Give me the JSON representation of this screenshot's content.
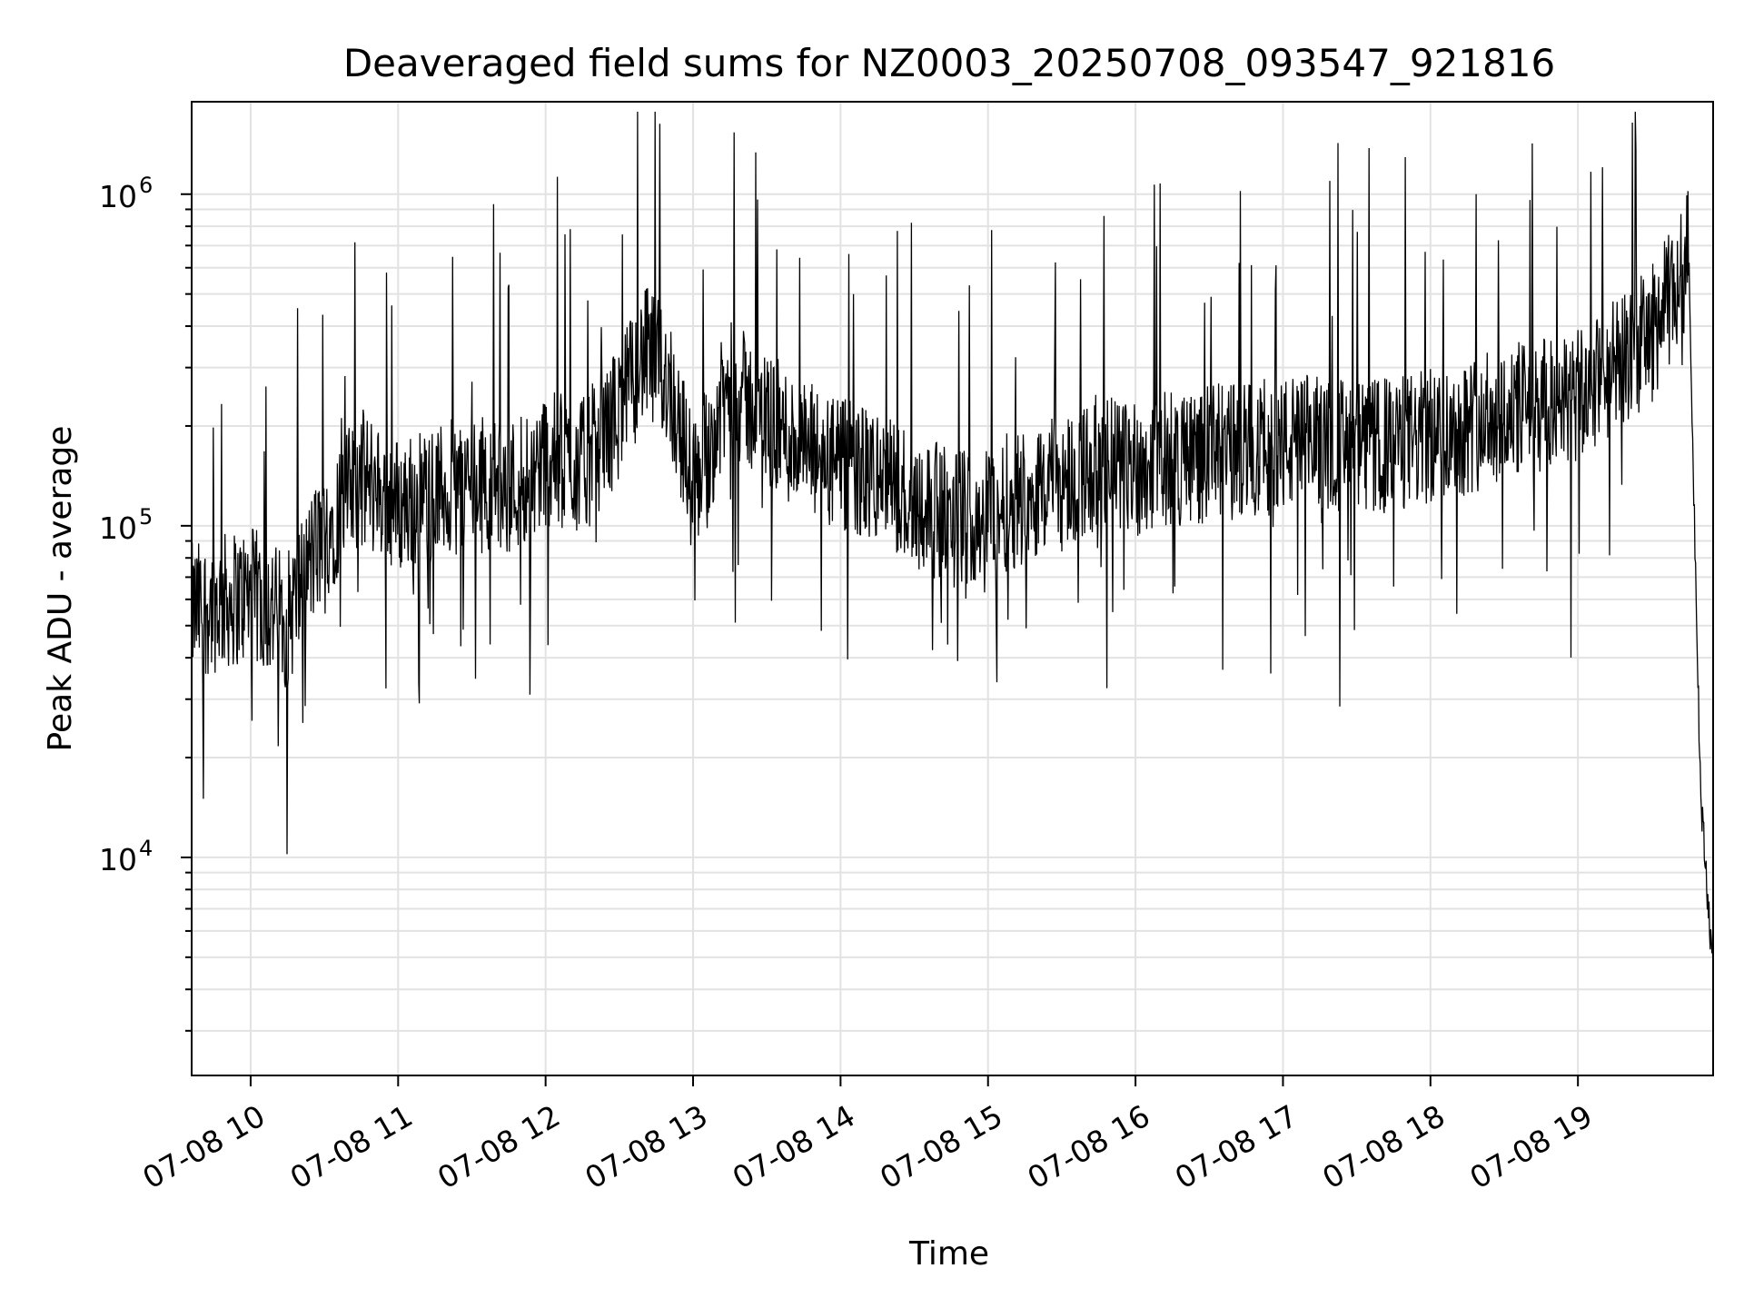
{
  "chart_data": {
    "type": "line",
    "title": "Deaveraged field sums for NZ0003_20250708_093547_921816",
    "xlabel": "Time",
    "ylabel": "Peak ADU - average",
    "yscale": "log",
    "ylim": [
      2200,
      1900000
    ],
    "xlim": [
      "2025-07-08 09:36",
      "2025-07-08 19:55"
    ],
    "grid": true,
    "grid_color": "#e2e2e2",
    "line_color": "#000000",
    "x_ticks": [
      {
        "value": "2025-07-08 10:00",
        "label": "07-08 10"
      },
      {
        "value": "2025-07-08 11:00",
        "label": "07-08 11"
      },
      {
        "value": "2025-07-08 12:00",
        "label": "07-08 12"
      },
      {
        "value": "2025-07-08 13:00",
        "label": "07-08 13"
      },
      {
        "value": "2025-07-08 14:00",
        "label": "07-08 14"
      },
      {
        "value": "2025-07-08 15:00",
        "label": "07-08 15"
      },
      {
        "value": "2025-07-08 16:00",
        "label": "07-08 16"
      },
      {
        "value": "2025-07-08 17:00",
        "label": "07-08 17"
      },
      {
        "value": "2025-07-08 18:00",
        "label": "07-08 18"
      },
      {
        "value": "2025-07-08 19:00",
        "label": "07-08 19"
      }
    ],
    "y_ticks": [
      {
        "value": 10000,
        "base": "10",
        "exp": "4"
      },
      {
        "value": 100000,
        "base": "10",
        "exp": "5"
      },
      {
        "value": 1000000,
        "base": "10",
        "exp": "6"
      }
    ],
    "series": [
      {
        "x": [
          "2025-07-08 09:36",
          "2025-07-08 09:45",
          "2025-07-08 10:00",
          "2025-07-08 10:15",
          "2025-07-08 10:25",
          "2025-07-08 10:35",
          "2025-07-08 10:45",
          "2025-07-08 11:00",
          "2025-07-08 11:15",
          "2025-07-08 11:30",
          "2025-07-08 11:45",
          "2025-07-08 12:00",
          "2025-07-08 12:15",
          "2025-07-08 12:30",
          "2025-07-08 12:40",
          "2025-07-08 12:50",
          "2025-07-08 13:00",
          "2025-07-08 13:15",
          "2025-07-08 13:30",
          "2025-07-08 13:45",
          "2025-07-08 14:00",
          "2025-07-08 14:15",
          "2025-07-08 14:30",
          "2025-07-08 14:45",
          "2025-07-08 15:00",
          "2025-07-08 15:15",
          "2025-07-08 15:30",
          "2025-07-08 15:45",
          "2025-07-08 16:00",
          "2025-07-08 16:15",
          "2025-07-08 16:30",
          "2025-07-08 16:45",
          "2025-07-08 17:00",
          "2025-07-08 17:15",
          "2025-07-08 17:30",
          "2025-07-08 17:45",
          "2025-07-08 18:00",
          "2025-07-08 18:15",
          "2025-07-08 18:30",
          "2025-07-08 18:45",
          "2025-07-08 19:00",
          "2025-07-08 19:15",
          "2025-07-08 19:30",
          "2025-07-08 19:40",
          "2025-07-08 19:45",
          "2025-07-08 19:50",
          "2025-07-08 19:55"
        ],
        "y": [
          55000,
          58000,
          62000,
          52000,
          80000,
          110000,
          140000,
          115000,
          125000,
          135000,
          130000,
          160000,
          150000,
          220000,
          330000,
          280000,
          130000,
          260000,
          210000,
          170000,
          150000,
          140000,
          120000,
          105000,
          110000,
          125000,
          135000,
          155000,
          150000,
          160000,
          165000,
          170000,
          175000,
          180000,
          170000,
          175000,
          185000,
          200000,
          220000,
          230000,
          240000,
          300000,
          380000,
          520000,
          650000,
          15000,
          4500
        ]
      }
    ]
  }
}
